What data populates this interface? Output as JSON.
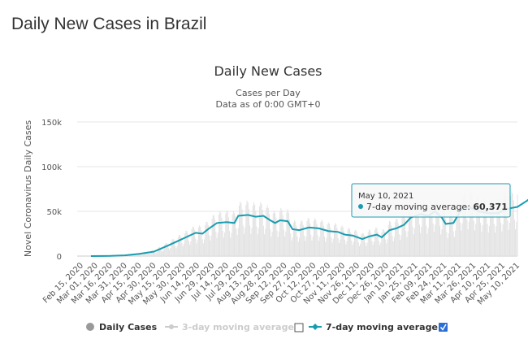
{
  "page_title": "Daily New Cases in Brazil",
  "chart_data": {
    "type": "line",
    "title": "Daily New Cases",
    "subtitle_1": "Cases per Day",
    "subtitle_2": "Data as of 0:00 GMT+0",
    "ylabel": "Novel Coronavirus Daily Cases",
    "ylim": [
      0,
      150000
    ],
    "y_ticks": [
      {
        "v": 0,
        "label": "0"
      },
      {
        "v": 50000,
        "label": "50k"
      },
      {
        "v": 100000,
        "label": "100k"
      },
      {
        "v": 150000,
        "label": "150k"
      }
    ],
    "x_start": "2020-02-15",
    "x_end": "2021-05-10",
    "x_ticks": [
      "Feb 15, 2020",
      "Mar 01, 2020",
      "Mar 16, 2020",
      "Mar 31, 2020",
      "Apr 15, 2020",
      "Apr 30, 2020",
      "May 15, 2020",
      "May 30, 2020",
      "Jun 14, 2020",
      "Jun 29, 2020",
      "Jul 14, 2020",
      "Jul 29, 2020",
      "Aug 13, 2020",
      "Aug 28, 2020",
      "Sep 12, 2020",
      "Sep 27, 2020",
      "Oct 12, 2020",
      "Oct 27, 2020",
      "Nov 11, 2020",
      "Nov 26, 2020",
      "Dec 11, 2020",
      "Dec 26, 2020",
      "Jan 10, 2021",
      "Jan 25, 2021",
      "Feb 09, 2021",
      "Feb 24, 2021",
      "Mar 11, 2021",
      "Mar 26, 2021",
      "Apr 10, 2021",
      "Apr 25, 2021",
      "May 10, 2021"
    ],
    "series": [
      {
        "name": "7-day moving average",
        "color": "#1a9cb0",
        "points": [
          [
            10,
            0
          ],
          [
            30,
            200
          ],
          [
            45,
            800
          ],
          [
            60,
            2500
          ],
          [
            75,
            5000
          ],
          [
            90,
            12000
          ],
          [
            100,
            17000
          ],
          [
            108,
            21000
          ],
          [
            118,
            26000
          ],
          [
            125,
            25000
          ],
          [
            132,
            31000
          ],
          [
            140,
            37000
          ],
          [
            150,
            38000
          ],
          [
            158,
            37000
          ],
          [
            162,
            45000
          ],
          [
            172,
            46000
          ],
          [
            180,
            44000
          ],
          [
            188,
            45000
          ],
          [
            195,
            40000
          ],
          [
            200,
            37000
          ],
          [
            205,
            40000
          ],
          [
            213,
            39000
          ],
          [
            218,
            30000
          ],
          [
            225,
            29000
          ],
          [
            235,
            32000
          ],
          [
            245,
            31000
          ],
          [
            255,
            28000
          ],
          [
            265,
            27000
          ],
          [
            272,
            24000
          ],
          [
            280,
            23000
          ],
          [
            290,
            19000
          ],
          [
            297,
            22000
          ],
          [
            305,
            24000
          ],
          [
            310,
            21000
          ],
          [
            318,
            29000
          ],
          [
            325,
            31000
          ],
          [
            333,
            35000
          ],
          [
            340,
            43000
          ],
          [
            350,
            47000
          ],
          [
            358,
            45000
          ],
          [
            365,
            50000
          ],
          [
            372,
            43000
          ],
          [
            376,
            36000
          ],
          [
            384,
            37000
          ],
          [
            392,
            52000
          ],
          [
            400,
            55000
          ],
          [
            410,
            50000
          ],
          [
            420,
            48000
          ],
          [
            430,
            48000
          ],
          [
            440,
            53000
          ],
          [
            450,
            55000
          ],
          [
            460,
            62000
          ],
          [
            470,
            71000
          ],
          [
            478,
            75000
          ],
          [
            483,
            76000
          ],
          [
            490,
            70000
          ],
          [
            500,
            65000
          ],
          [
            510,
            60000
          ],
          [
            520,
            58000
          ],
          [
            530,
            62000
          ],
          [
            537,
            55000
          ],
          [
            542,
            60371
          ]
        ]
      },
      {
        "name": "3-day moving average",
        "color": "#cccccc",
        "hidden": true
      },
      {
        "name": "Daily Cases",
        "color": "#999999",
        "weekly_pattern": [
          0.55,
          0.7,
          1.25,
          1.35,
          1.3,
          1.15,
          0.75
        ]
      }
    ],
    "legend": {
      "position": "bottom",
      "items": [
        {
          "label": "Daily Cases",
          "active": true
        },
        {
          "label": "3-day moving average",
          "active": false,
          "checked": false
        },
        {
          "label": "7-day moving average",
          "active": true,
          "checked": true
        }
      ]
    },
    "tooltip": {
      "date": "May 10, 2021",
      "series": "7-day moving average",
      "label": "7-day moving average: ",
      "value": "60,371"
    }
  }
}
